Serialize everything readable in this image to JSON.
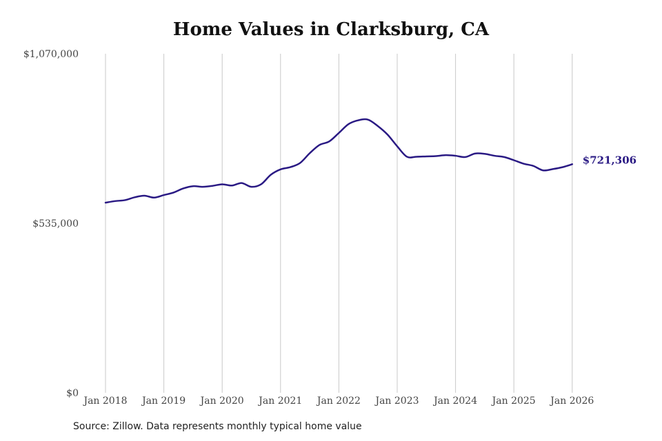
{
  "chart_data": {
    "type": "line",
    "title": "Home Values in Clarksburg, CA",
    "xlabel": "",
    "ylabel": "",
    "ylim": [
      0,
      1070000
    ],
    "y_ticks": [
      0,
      535000,
      1070000
    ],
    "y_tick_labels": [
      "$0",
      "$535,000",
      "$1,070,000"
    ],
    "x_ticks": [
      "Jan 2018",
      "Jan 2019",
      "Jan 2020",
      "Jan 2021",
      "Jan 2022",
      "Jan 2023",
      "Jan 2024",
      "Jan 2025",
      "Jan 2026"
    ],
    "grid": "vertical",
    "legend": "none",
    "line_color": "#2a1a84",
    "end_label": "$721,306",
    "series": [
      {
        "x": [
          "2018-01",
          "2018-03",
          "2018-05",
          "2018-07",
          "2018-09",
          "2018-11",
          "2019-01",
          "2019-03",
          "2019-05",
          "2019-07",
          "2019-09",
          "2019-11",
          "2020-01",
          "2020-03",
          "2020-05",
          "2020-07",
          "2020-09",
          "2020-11",
          "2021-01",
          "2021-03",
          "2021-05",
          "2021-07",
          "2021-09",
          "2021-11",
          "2022-01",
          "2022-03",
          "2022-05",
          "2022-07",
          "2022-09",
          "2022-11",
          "2023-01",
          "2023-03",
          "2023-05",
          "2023-07",
          "2023-09",
          "2023-11",
          "2024-01",
          "2024-03",
          "2024-05",
          "2024-07",
          "2024-09",
          "2024-11",
          "2025-01",
          "2025-03",
          "2025-05",
          "2025-07",
          "2025-09",
          "2025-11",
          "2026-01"
        ],
        "values": [
          600000,
          605000,
          608000,
          617000,
          622000,
          616000,
          624000,
          632000,
          645000,
          652000,
          650000,
          653000,
          658000,
          654000,
          662000,
          650000,
          658000,
          688000,
          705000,
          712000,
          725000,
          756000,
          782000,
          793000,
          820000,
          848000,
          860000,
          862000,
          842000,
          815000,
          778000,
          745000,
          745000,
          746000,
          747000,
          750000,
          748000,
          744000,
          755000,
          754000,
          748000,
          744000,
          734000,
          723000,
          716000,
          702000,
          706000,
          712000,
          721306
        ]
      }
    ]
  },
  "source_note": "Source: Zillow. Data represents monthly typical home value"
}
